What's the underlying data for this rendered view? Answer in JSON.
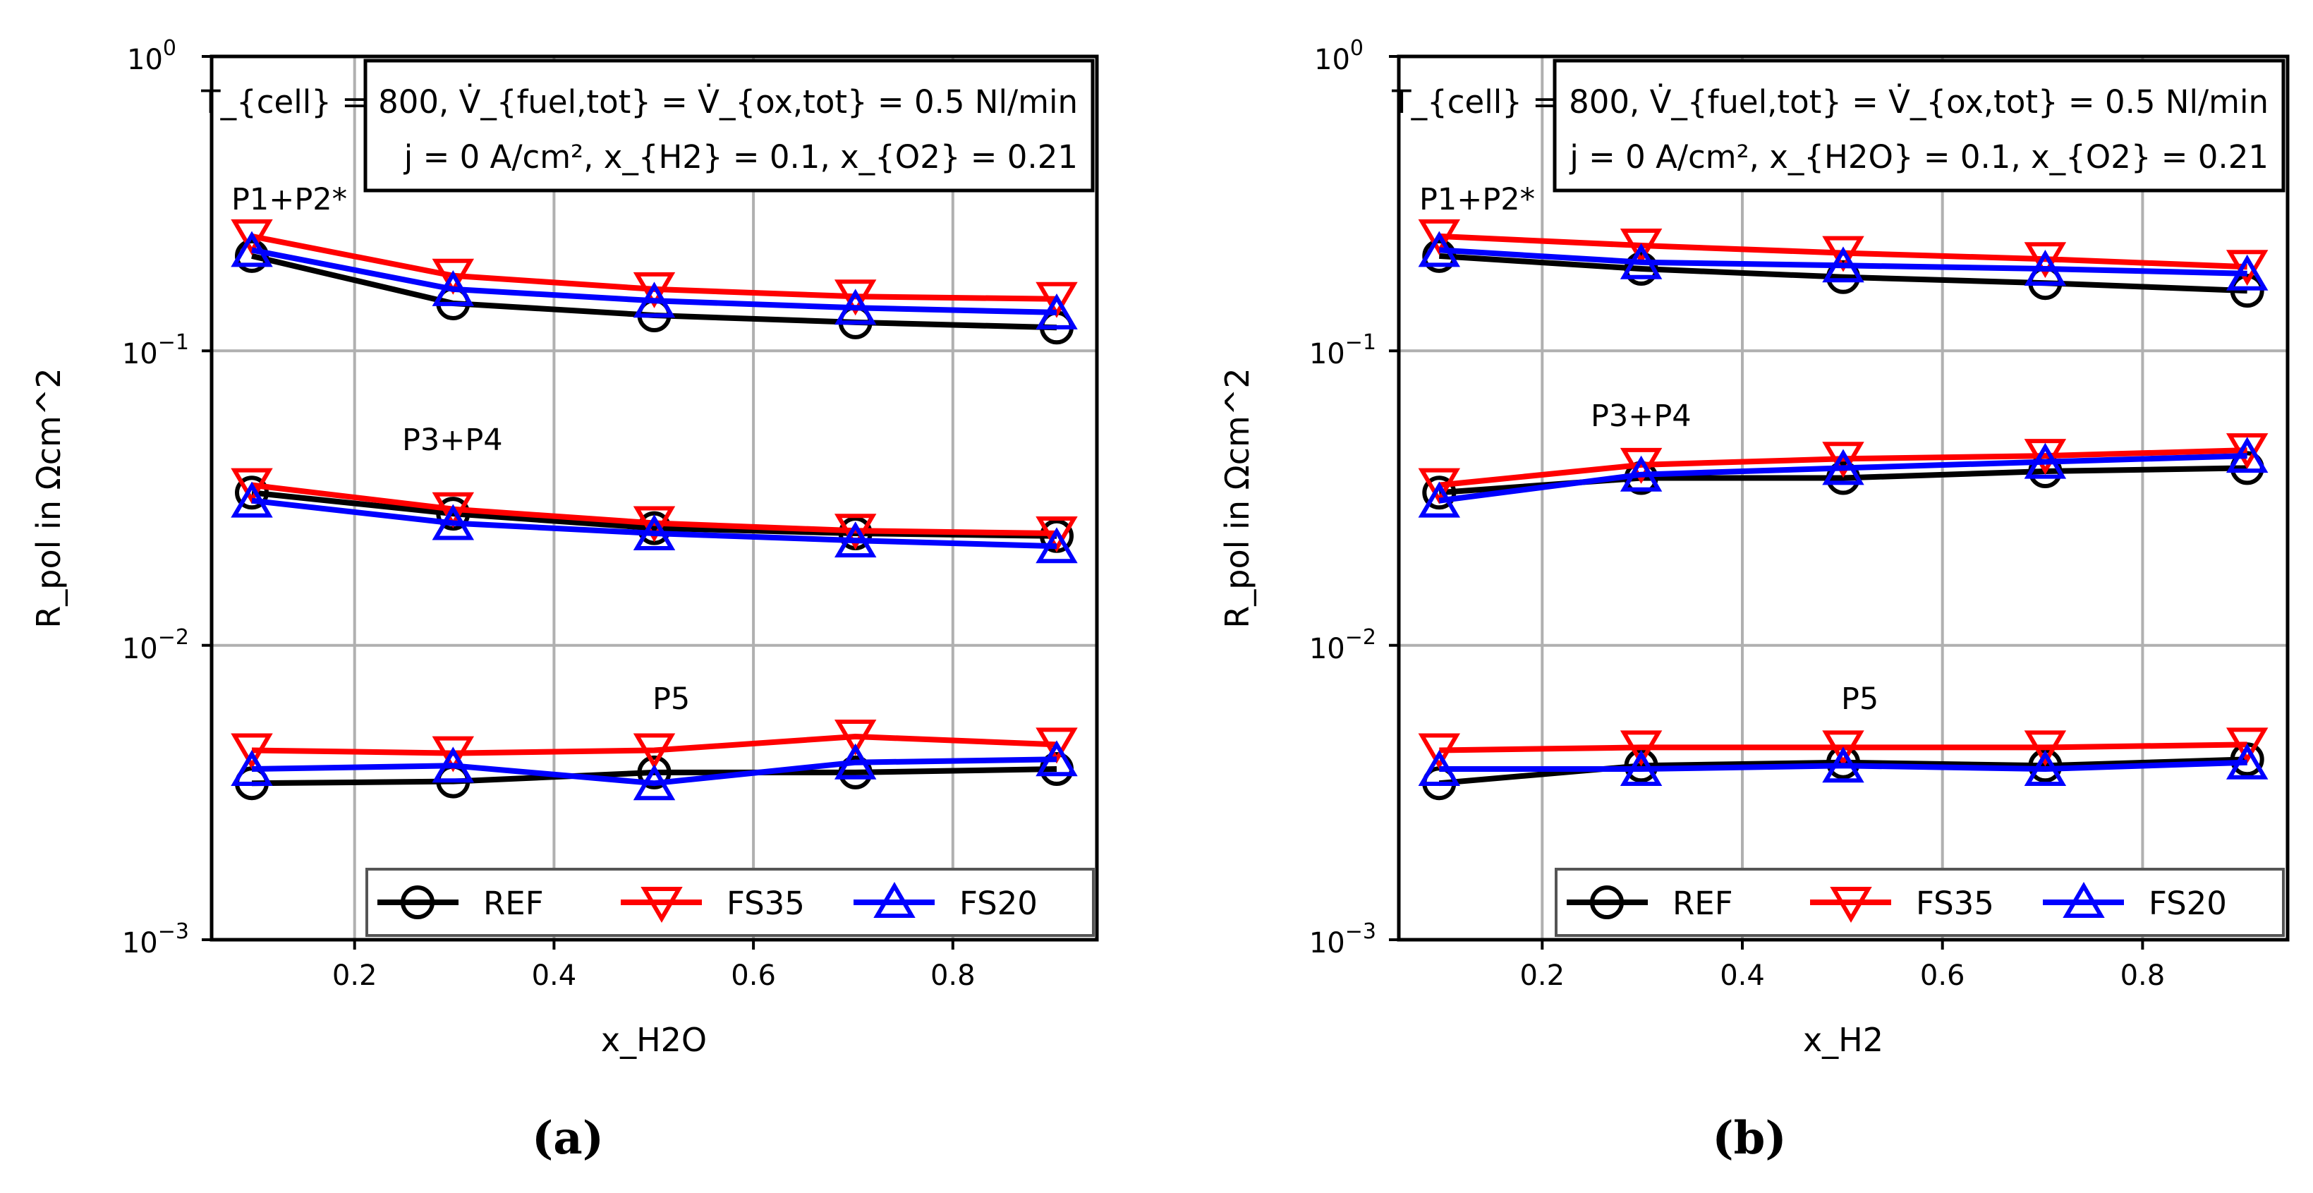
{
  "figure": {
    "panels": [
      {
        "caption": "(a)",
        "xlabel": "x_{H2O}",
        "ylabel": "R_{pol} in Ωcm^2",
        "conditions": {
          "line1": "T_{cell} = 800, V̇_{fuel,tot} = V̇_{ox,tot} = 0.5 Nl/min",
          "line2": "j = 0 A/cm², x_{H2} = 0.1, x_{O2} = 0.21"
        }
      },
      {
        "caption": "(b)",
        "xlabel": "x_{H2}",
        "ylabel": "R_{pol} in Ωcm^2",
        "conditions": {
          "line1": "T_{cell} = 800, V̇_{fuel,tot} = V̇_{ox,tot} = 0.5 Nl/min",
          "line2": "j = 0 A/cm², x_{H2O} = 0.1, x_{O2} = 0.21"
        }
      }
    ]
  },
  "chart_data": [
    {
      "type": "line",
      "title": "",
      "xlabel": "x_H2O",
      "ylabel": "R_pol in Ωcm^2",
      "yscale": "log",
      "xlim": [
        0.06,
        0.94
      ],
      "ylim": [
        0.001,
        1
      ],
      "xticks": [
        0.2,
        0.4,
        0.6,
        0.8
      ],
      "xtick_labels": [
        "0.2",
        "0.4",
        "0.6",
        "0.8"
      ],
      "yticks": [
        0.001,
        0.01,
        0.1,
        1
      ],
      "ytick_labels": [
        {
          "base": "10",
          "exp": "−3"
        },
        {
          "base": "10",
          "exp": "−2"
        },
        {
          "base": "10",
          "exp": "−1"
        },
        {
          "base": "10",
          "exp": "0"
        }
      ],
      "grid": true,
      "legend": {
        "position": "bottom",
        "entries": [
          "REF",
          "FS35",
          "FS20"
        ]
      },
      "annotations": [
        "P1+P2*",
        "P3+P4",
        "P5"
      ],
      "x": [
        0.1,
        0.3,
        0.5,
        0.7,
        0.9
      ],
      "series": [
        {
          "name": "REF",
          "group": "P1+P2*",
          "color": "#000000",
          "marker": "circle",
          "values": [
            0.21,
            0.145,
            0.132,
            0.125,
            0.12
          ]
        },
        {
          "name": "FS35",
          "group": "P1+P2*",
          "color": "#ff0000",
          "marker": "triangle-down",
          "values": [
            0.245,
            0.18,
            0.162,
            0.153,
            0.15
          ]
        },
        {
          "name": "FS20",
          "group": "P1+P2*",
          "color": "#0000ff",
          "marker": "triangle-up",
          "values": [
            0.22,
            0.162,
            0.148,
            0.14,
            0.135
          ]
        },
        {
          "name": "REF",
          "group": "P3+P4",
          "color": "#000000",
          "marker": "circle",
          "values": [
            0.033,
            0.028,
            0.025,
            0.024,
            0.0235
          ]
        },
        {
          "name": "FS35",
          "group": "P3+P4",
          "color": "#ff0000",
          "marker": "triangle-down",
          "values": [
            0.035,
            0.029,
            0.026,
            0.0245,
            0.024
          ]
        },
        {
          "name": "FS20",
          "group": "P3+P4",
          "color": "#0000ff",
          "marker": "triangle-up",
          "values": [
            0.031,
            0.026,
            0.024,
            0.0227,
            0.0217
          ]
        },
        {
          "name": "REF",
          "group": "P5",
          "color": "#000000",
          "marker": "circle",
          "values": [
            0.0034,
            0.00345,
            0.0037,
            0.0037,
            0.0038
          ]
        },
        {
          "name": "FS35",
          "group": "P5",
          "color": "#ff0000",
          "marker": "triangle-down",
          "values": [
            0.0044,
            0.0043,
            0.0044,
            0.0049,
            0.0046
          ]
        },
        {
          "name": "FS20",
          "group": "P5",
          "color": "#0000ff",
          "marker": "triangle-up",
          "values": [
            0.0038,
            0.0039,
            0.0034,
            0.004,
            0.0041
          ]
        }
      ]
    },
    {
      "type": "line",
      "title": "",
      "xlabel": "x_H2",
      "ylabel": "R_pol in Ωcm^2",
      "yscale": "log",
      "xlim": [
        0.06,
        0.94
      ],
      "ylim": [
        0.001,
        1
      ],
      "xticks": [
        0.2,
        0.4,
        0.6,
        0.8
      ],
      "xtick_labels": [
        "0.2",
        "0.4",
        "0.6",
        "0.8"
      ],
      "yticks": [
        0.001,
        0.01,
        0.1,
        1
      ],
      "ytick_labels": [
        {
          "base": "10",
          "exp": "−3"
        },
        {
          "base": "10",
          "exp": "−2"
        },
        {
          "base": "10",
          "exp": "−1"
        },
        {
          "base": "10",
          "exp": "0"
        }
      ],
      "grid": true,
      "legend": {
        "position": "bottom",
        "entries": [
          "REF",
          "FS35",
          "FS20"
        ]
      },
      "annotations": [
        "P1+P2*",
        "P3+P4",
        "P5"
      ],
      "x": [
        0.1,
        0.3,
        0.5,
        0.7,
        0.9
      ],
      "series": [
        {
          "name": "REF",
          "group": "P1+P2*",
          "color": "#000000",
          "marker": "circle",
          "values": [
            0.21,
            0.19,
            0.178,
            0.17,
            0.16
          ]
        },
        {
          "name": "FS35",
          "group": "P1+P2*",
          "color": "#ff0000",
          "marker": "triangle-down",
          "values": [
            0.245,
            0.228,
            0.215,
            0.205,
            0.193
          ]
        },
        {
          "name": "FS20",
          "group": "P1+P2*",
          "color": "#0000ff",
          "marker": "triangle-up",
          "values": [
            0.22,
            0.2,
            0.195,
            0.19,
            0.183
          ]
        },
        {
          "name": "REF",
          "group": "P3+P4",
          "color": "#000000",
          "marker": "circle",
          "values": [
            0.033,
            0.037,
            0.037,
            0.039,
            0.04
          ]
        },
        {
          "name": "FS35",
          "group": "P3+P4",
          "color": "#ff0000",
          "marker": "triangle-down",
          "values": [
            0.035,
            0.041,
            0.043,
            0.044,
            0.046
          ]
        },
        {
          "name": "FS20",
          "group": "P3+P4",
          "color": "#0000ff",
          "marker": "triangle-up",
          "values": [
            0.031,
            0.038,
            0.04,
            0.042,
            0.044
          ]
        },
        {
          "name": "REF",
          "group": "P5",
          "color": "#000000",
          "marker": "circle",
          "values": [
            0.0034,
            0.0039,
            0.004,
            0.0039,
            0.0041
          ]
        },
        {
          "name": "FS35",
          "group": "P5",
          "color": "#ff0000",
          "marker": "triangle-down",
          "values": [
            0.0044,
            0.0045,
            0.0045,
            0.0045,
            0.0046
          ]
        },
        {
          "name": "FS20",
          "group": "P5",
          "color": "#0000ff",
          "marker": "triangle-up",
          "values": [
            0.0038,
            0.0038,
            0.0039,
            0.0038,
            0.004
          ]
        }
      ]
    }
  ]
}
